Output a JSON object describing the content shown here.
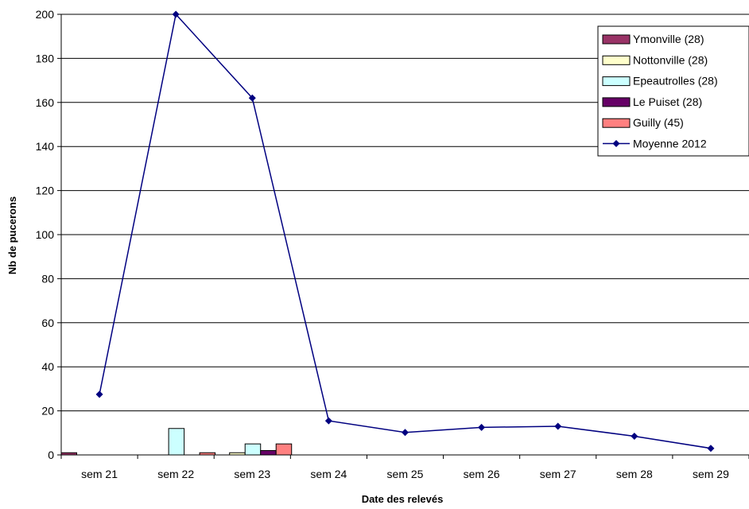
{
  "chart_data": {
    "type": "bar",
    "xlabel": "Date des relevés",
    "ylabel": "Nb de pucerons",
    "ylim": [
      0,
      200
    ],
    "yticks": [
      0,
      20,
      40,
      60,
      80,
      100,
      120,
      140,
      160,
      180,
      200
    ],
    "grid": true,
    "legend_position": "top-right",
    "categories": [
      "sem 21",
      "sem 22",
      "sem 23",
      "sem 24",
      "sem 25",
      "sem 26",
      "sem 27",
      "sem 28",
      "sem 29"
    ],
    "series": [
      {
        "name": "Ymonville (28)",
        "kind": "bar",
        "color": "#993366",
        "values": [
          1,
          0,
          0,
          0,
          0,
          0,
          0,
          0,
          0
        ]
      },
      {
        "name": "Nottonville (28)",
        "kind": "bar",
        "color": "#FFFFCC",
        "values": [
          0,
          0,
          1,
          0,
          0,
          0,
          0,
          0,
          0
        ]
      },
      {
        "name": "Epeautrolles (28)",
        "kind": "bar",
        "color": "#CCFFFF",
        "values": [
          0,
          12,
          5,
          0,
          0,
          0,
          0,
          0,
          0
        ]
      },
      {
        "name": "Le Puiset (28)",
        "kind": "bar",
        "color": "#660066",
        "values": [
          0,
          0,
          2,
          0,
          0,
          0,
          0,
          0,
          0
        ]
      },
      {
        "name": "Guilly (45)",
        "kind": "bar",
        "color": "#FF8080",
        "values": [
          0,
          1,
          5,
          0,
          0,
          0,
          0,
          0,
          0
        ]
      },
      {
        "name": "Moyenne 2012",
        "kind": "line",
        "color": "#000080",
        "values": [
          27.5,
          200,
          162,
          15.5,
          10.2,
          12.5,
          13,
          8.5,
          3
        ]
      }
    ]
  }
}
